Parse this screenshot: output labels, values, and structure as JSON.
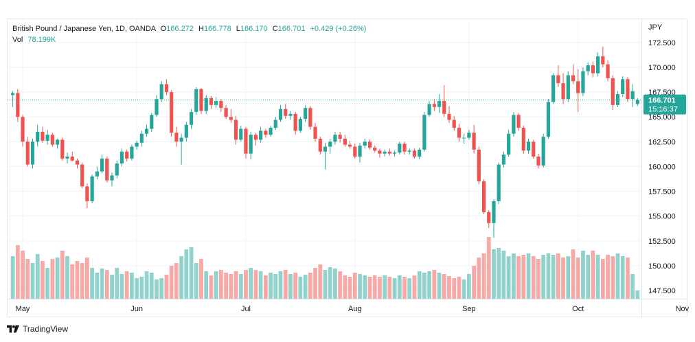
{
  "legend": {
    "symbol": "British Pound / Japanese Yen, 1D, OANDA",
    "o_label": "O",
    "o_value": "166.272",
    "h_label": "H",
    "h_value": "166.778",
    "l_label": "L",
    "l_value": "166.170",
    "c_label": "C",
    "c_value": "166.701",
    "change": "+0.429 (+0.26%)",
    "vol_label": "Vol",
    "vol_value": "78.199K"
  },
  "axis_unit": "JPY",
  "price_tag": {
    "value": "166.701",
    "countdown": "15:16:37"
  },
  "brand": "TradingView",
  "colors": {
    "up": "#26a69a",
    "down": "#ef5350",
    "up_vol": "#92d2cc",
    "down_vol": "#f7a9a7",
    "grid": "#f0f3fa",
    "text": "#131722"
  },
  "chart_data": {
    "type": "candlestick",
    "ylim": [
      146.5,
      174
    ],
    "y_ticks": [
      "172.500",
      "170.000",
      "167.500",
      "165.000",
      "162.500",
      "160.000",
      "157.500",
      "155.000",
      "152.500",
      "150.000",
      "147.500"
    ],
    "x_ticks": [
      {
        "label": "May",
        "index": 2
      },
      {
        "label": "Jun",
        "index": 25
      },
      {
        "label": "Jul",
        "index": 47
      },
      {
        "label": "Aug",
        "index": 69
      },
      {
        "label": "Sep",
        "index": 92
      },
      {
        "label": "Oct",
        "index": 114
      },
      {
        "label": "Nov",
        "index": 135
      }
    ],
    "last_price": 166.701,
    "candles": [
      [
        167.2,
        167.6,
        166.0,
        167.4,
        0.62
      ],
      [
        167.4,
        167.8,
        164.5,
        165.0,
        0.78
      ],
      [
        165.0,
        165.2,
        162.0,
        162.5,
        0.7
      ],
      [
        162.5,
        163.0,
        160.0,
        160.2,
        0.58
      ],
      [
        160.2,
        162.8,
        159.8,
        162.5,
        0.52
      ],
      [
        162.5,
        164.2,
        162.0,
        163.5,
        0.65
      ],
      [
        163.5,
        164.0,
        162.4,
        162.6,
        0.55
      ],
      [
        162.6,
        163.7,
        162.2,
        163.2,
        0.45
      ],
      [
        163.2,
        163.4,
        162.0,
        162.2,
        0.58
      ],
      [
        162.2,
        162.8,
        161.8,
        162.7,
        0.6
      ],
      [
        162.7,
        162.9,
        160.6,
        160.8,
        0.7
      ],
      [
        160.8,
        161.4,
        160.3,
        161.0,
        0.62
      ],
      [
        161.0,
        161.5,
        160.5,
        160.6,
        0.5
      ],
      [
        160.6,
        160.8,
        159.8,
        160.2,
        0.55
      ],
      [
        160.2,
        160.4,
        157.8,
        158.0,
        0.52
      ],
      [
        158.0,
        158.3,
        155.8,
        156.5,
        0.6
      ],
      [
        156.5,
        159.2,
        156.3,
        159.0,
        0.45
      ],
      [
        159.0,
        160.0,
        158.7,
        159.5,
        0.38
      ],
      [
        159.5,
        161.2,
        159.3,
        160.8,
        0.44
      ],
      [
        160.8,
        161.0,
        158.4,
        158.6,
        0.42
      ],
      [
        158.6,
        159.4,
        158.0,
        159.1,
        0.35
      ],
      [
        159.1,
        160.6,
        158.8,
        160.3,
        0.45
      ],
      [
        160.3,
        161.8,
        160.0,
        161.5,
        0.36
      ],
      [
        161.5,
        161.7,
        160.5,
        160.8,
        0.4
      ],
      [
        160.8,
        162.2,
        160.6,
        162.0,
        0.38
      ],
      [
        162.0,
        162.6,
        161.7,
        162.4,
        0.3
      ],
      [
        162.4,
        163.6,
        162.0,
        163.3,
        0.32
      ],
      [
        163.3,
        164.2,
        163.0,
        163.8,
        0.4
      ],
      [
        163.8,
        165.4,
        163.5,
        165.2,
        0.38
      ],
      [
        165.2,
        167.2,
        165.0,
        166.8,
        0.28
      ],
      [
        166.8,
        168.6,
        166.5,
        168.3,
        0.3
      ],
      [
        168.3,
        168.8,
        167.2,
        167.5,
        0.35
      ],
      [
        167.5,
        167.7,
        163.0,
        163.4,
        0.48
      ],
      [
        163.4,
        164.0,
        162.0,
        162.5,
        0.52
      ],
      [
        162.5,
        163.3,
        160.2,
        162.9,
        0.62
      ],
      [
        162.9,
        164.5,
        162.5,
        164.2,
        0.72
      ],
      [
        164.2,
        165.8,
        163.8,
        165.5,
        0.75
      ],
      [
        165.5,
        168.0,
        165.2,
        167.8,
        0.52
      ],
      [
        167.8,
        167.9,
        165.3,
        165.6,
        0.58
      ],
      [
        165.6,
        167.2,
        165.3,
        166.9,
        0.4
      ],
      [
        166.9,
        167.1,
        165.8,
        166.2,
        0.34
      ],
      [
        166.2,
        167.0,
        165.9,
        166.6,
        0.4
      ],
      [
        166.6,
        166.8,
        165.5,
        165.9,
        0.42
      ],
      [
        165.9,
        166.2,
        164.8,
        165.0,
        0.38
      ],
      [
        165.0,
        165.8,
        164.4,
        164.7,
        0.36
      ],
      [
        164.7,
        165.1,
        162.2,
        162.7,
        0.4
      ],
      [
        162.7,
        164.1,
        162.5,
        163.8,
        0.36
      ],
      [
        163.8,
        164.0,
        160.8,
        161.3,
        0.42
      ],
      [
        161.3,
        163.5,
        160.7,
        163.2,
        0.45
      ],
      [
        163.2,
        163.4,
        162.1,
        162.7,
        0.42
      ],
      [
        162.7,
        164.0,
        162.4,
        163.6,
        0.4
      ],
      [
        163.6,
        163.8,
        162.9,
        163.2,
        0.34
      ],
      [
        163.2,
        164.1,
        163.0,
        163.9,
        0.38
      ],
      [
        163.9,
        165.0,
        163.7,
        164.7,
        0.36
      ],
      [
        164.7,
        166.2,
        164.5,
        165.8,
        0.4
      ],
      [
        165.8,
        166.3,
        164.8,
        165.1,
        0.42
      ],
      [
        165.1,
        165.6,
        164.7,
        165.3,
        0.36
      ],
      [
        165.3,
        165.5,
        163.2,
        163.6,
        0.38
      ],
      [
        163.6,
        165.0,
        163.4,
        164.8,
        0.32
      ],
      [
        164.8,
        166.2,
        164.5,
        165.9,
        0.35
      ],
      [
        165.9,
        166.1,
        163.7,
        164.0,
        0.38
      ],
      [
        164.0,
        164.4,
        162.5,
        162.8,
        0.45
      ],
      [
        162.8,
        163.0,
        161.2,
        161.5,
        0.5
      ],
      [
        161.5,
        162.4,
        159.7,
        162.0,
        0.42
      ],
      [
        162.0,
        162.8,
        161.3,
        162.5,
        0.46
      ],
      [
        162.5,
        163.5,
        162.2,
        163.2,
        0.44
      ],
      [
        163.2,
        163.5,
        162.4,
        162.8,
        0.4
      ],
      [
        162.8,
        163.2,
        162.0,
        162.2,
        0.34
      ],
      [
        162.2,
        162.6,
        161.8,
        162.0,
        0.32
      ],
      [
        162.0,
        162.3,
        160.8,
        161.0,
        0.38
      ],
      [
        161.0,
        162.4,
        160.4,
        162.1,
        0.36
      ],
      [
        162.1,
        162.8,
        161.8,
        162.5,
        0.34
      ],
      [
        162.5,
        162.7,
        161.7,
        161.9,
        0.32
      ],
      [
        161.9,
        162.1,
        161.4,
        161.6,
        0.34
      ],
      [
        161.6,
        161.8,
        160.9,
        161.3,
        0.32
      ],
      [
        161.3,
        161.7,
        161.0,
        161.5,
        0.34
      ],
      [
        161.5,
        161.8,
        161.1,
        161.3,
        0.32
      ],
      [
        161.3,
        161.6,
        161.0,
        161.4,
        0.3
      ],
      [
        161.4,
        162.5,
        161.2,
        162.3,
        0.34
      ],
      [
        162.3,
        162.5,
        161.2,
        161.5,
        0.32
      ],
      [
        161.5,
        161.8,
        161.2,
        161.6,
        0.3
      ],
      [
        161.6,
        161.8,
        160.8,
        161.0,
        0.34
      ],
      [
        161.0,
        161.9,
        160.7,
        161.7,
        0.4
      ],
      [
        161.7,
        165.5,
        161.5,
        165.2,
        0.38
      ],
      [
        165.2,
        166.6,
        165.0,
        166.3,
        0.4
      ],
      [
        166.3,
        166.8,
        165.6,
        166.0,
        0.42
      ],
      [
        166.0,
        167.3,
        165.4,
        166.6,
        0.38
      ],
      [
        166.6,
        168.2,
        165.0,
        165.3,
        0.36
      ],
      [
        165.3,
        166.1,
        164.4,
        164.7,
        0.33
      ],
      [
        164.7,
        165.1,
        163.6,
        163.9,
        0.3
      ],
      [
        163.9,
        164.3,
        162.5,
        162.9,
        0.32
      ],
      [
        162.9,
        163.3,
        162.3,
        162.9,
        0.28
      ],
      [
        162.9,
        163.7,
        162.7,
        163.4,
        0.36
      ],
      [
        163.4,
        164.2,
        161.3,
        161.7,
        0.48
      ],
      [
        161.7,
        162.0,
        158.2,
        158.5,
        0.6
      ],
      [
        158.5,
        158.7,
        155.2,
        155.4,
        0.66
      ],
      [
        155.4,
        155.6,
        153.8,
        154.3,
        0.9
      ],
      [
        154.3,
        156.7,
        152.8,
        156.5,
        0.72
      ],
      [
        156.5,
        160.4,
        156.2,
        160.2,
        0.74
      ],
      [
        160.2,
        161.5,
        159.9,
        161.2,
        0.7
      ],
      [
        161.2,
        163.7,
        161.0,
        163.3,
        0.62
      ],
      [
        163.3,
        165.5,
        163.0,
        165.2,
        0.66
      ],
      [
        165.2,
        165.4,
        163.6,
        163.9,
        0.62
      ],
      [
        163.9,
        164.1,
        161.3,
        161.6,
        0.64
      ],
      [
        161.6,
        162.8,
        161.3,
        162.5,
        0.66
      ],
      [
        162.5,
        162.7,
        160.8,
        161.0,
        0.62
      ],
      [
        161.0,
        161.3,
        159.8,
        160.1,
        0.58
      ],
      [
        160.1,
        163.3,
        159.9,
        163.0,
        0.64
      ],
      [
        163.0,
        166.8,
        162.8,
        166.5,
        0.66
      ],
      [
        166.5,
        169.4,
        166.3,
        169.2,
        0.64
      ],
      [
        169.2,
        170.2,
        168.0,
        168.4,
        0.66
      ],
      [
        168.4,
        169.4,
        166.3,
        166.8,
        0.6
      ],
      [
        166.8,
        169.6,
        166.5,
        169.2,
        0.62
      ],
      [
        169.2,
        170.3,
        168.3,
        168.6,
        0.72
      ],
      [
        168.6,
        169.8,
        165.5,
        167.4,
        0.6
      ],
      [
        167.4,
        170.0,
        167.1,
        169.6,
        0.7
      ],
      [
        169.6,
        170.5,
        169.2,
        170.2,
        0.64
      ],
      [
        170.2,
        170.6,
        169.0,
        169.4,
        0.7
      ],
      [
        169.4,
        171.5,
        169.1,
        171.1,
        0.64
      ],
      [
        171.1,
        172.1,
        170.0,
        170.3,
        0.58
      ],
      [
        170.3,
        170.7,
        168.6,
        168.9,
        0.64
      ],
      [
        168.9,
        169.2,
        165.7,
        166.2,
        0.62
      ],
      [
        166.2,
        167.6,
        166.0,
        167.3,
        0.66
      ],
      [
        167.3,
        169.1,
        167.0,
        168.8,
        0.62
      ],
      [
        168.8,
        169.0,
        166.5,
        166.8,
        0.6
      ],
      [
        166.8,
        168.3,
        166.0,
        167.6,
        0.36
      ],
      [
        166.3,
        166.9,
        166.1,
        166.7,
        0.12
      ]
    ]
  }
}
